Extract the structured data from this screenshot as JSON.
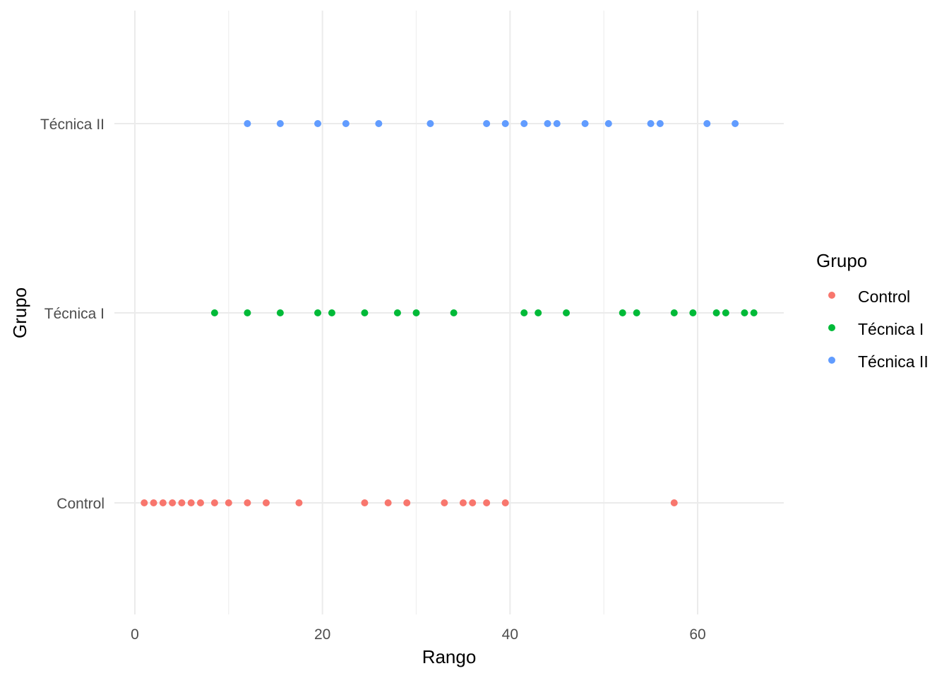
{
  "chart_data": {
    "type": "scatter",
    "xlabel": "Rango",
    "ylabel": "Grupo",
    "xlim": [
      -2,
      69.5
    ],
    "x_ticks": [
      0,
      20,
      40,
      60
    ],
    "x_minor_ticks": [
      10,
      30,
      50
    ],
    "categories": [
      "Control",
      "Técnica I",
      "Técnica II"
    ],
    "grid": true,
    "legend": {
      "title": "Grupo",
      "position": "right"
    },
    "series": [
      {
        "name": "Control",
        "color": "#F8766D",
        "values": [
          1,
          2,
          3,
          4,
          5,
          6,
          7,
          8.5,
          10,
          12,
          14,
          17.5,
          24.5,
          27,
          29,
          33,
          35,
          36,
          37.5,
          39.5,
          57.5
        ]
      },
      {
        "name": "Técnica I",
        "color": "#00BA38",
        "values": [
          8.5,
          12,
          15.5,
          19.5,
          21,
          24.5,
          28,
          30,
          34,
          41.5,
          43,
          46,
          52,
          53.5,
          57.5,
          59.5,
          62,
          63,
          65,
          66
        ]
      },
      {
        "name": "Técnica II",
        "color": "#619CFF",
        "values": [
          12,
          15.5,
          19.5,
          22.5,
          26,
          31.5,
          37.5,
          39.5,
          41.5,
          44,
          45,
          48,
          50.5,
          55,
          56,
          61,
          64
        ]
      }
    ]
  }
}
